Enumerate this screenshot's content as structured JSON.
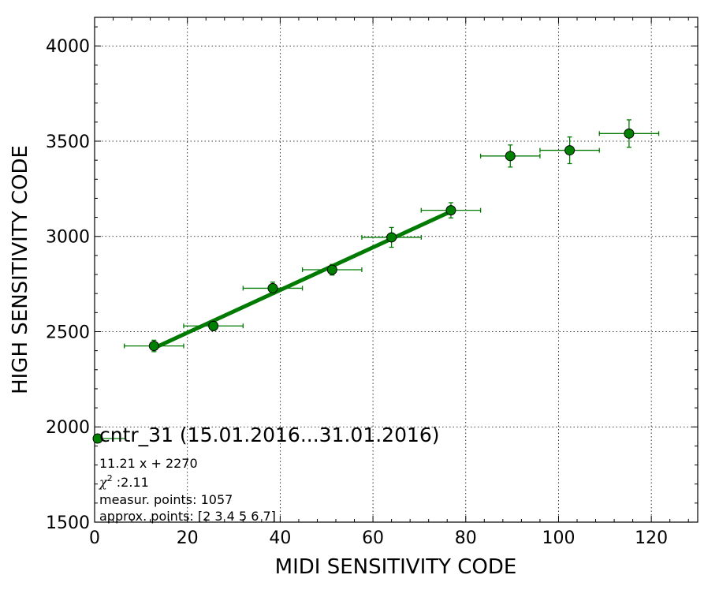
{
  "chart_data": {
    "type": "scatter",
    "title": "",
    "xlabel": "MIDI SENSITIVITY CODE",
    "ylabel": "HIGH SENSITIVITY CODE",
    "xlim": [
      0,
      130
    ],
    "ylim": [
      1500,
      4150
    ],
    "grid": true,
    "x_ticks": [
      0,
      20,
      40,
      60,
      80,
      100,
      120
    ],
    "y_ticks": [
      1500,
      2000,
      2500,
      3000,
      3500,
      4000
    ],
    "x_tick_labels": [
      "0",
      "20",
      "40",
      "60",
      "80",
      "100",
      "120"
    ],
    "y_tick_labels": [
      "1500",
      "2000",
      "2500",
      "3000",
      "3500",
      "4000"
    ],
    "series": [
      {
        "type": "errorbar",
        "color": "#007a00",
        "points": [
          {
            "x": 12.8,
            "y": 2425,
            "xerr": 6.4,
            "yerr": 30
          },
          {
            "x": 25.6,
            "y": 2530,
            "xerr": 6.4,
            "yerr": 25
          },
          {
            "x": 38.4,
            "y": 2728,
            "xerr": 6.4,
            "yerr": 32
          },
          {
            "x": 51.2,
            "y": 2825,
            "xerr": 6.4,
            "yerr": 28
          },
          {
            "x": 64.0,
            "y": 2995,
            "xerr": 6.4,
            "yerr": 52
          },
          {
            "x": 76.8,
            "y": 3137,
            "xerr": 6.4,
            "yerr": 40
          },
          {
            "x": 89.6,
            "y": 3422,
            "xerr": 6.4,
            "yerr": 58
          },
          {
            "x": 102.4,
            "y": 3452,
            "xerr": 6.4,
            "yerr": 70
          },
          {
            "x": 115.2,
            "y": 3540,
            "xerr": 6.4,
            "yerr": 72
          }
        ]
      },
      {
        "type": "line",
        "color": "#007a00",
        "slope": 11.21,
        "intercept": 2270,
        "x_range": [
          12.8,
          76.8
        ]
      }
    ],
    "legend": {
      "placement": "bottom-left",
      "title": "cntr_31 (15.01.2016...31.01.2016)",
      "lines": {
        "equation": "11.21 x + 2270",
        "chi2_symbol": "χ",
        "chi2_sup": "2",
        "chi2_value": " :2.11",
        "measur": "measur. points: 1057",
        "approx": "approx. points: [2 3 4 5 6 7]"
      }
    }
  }
}
